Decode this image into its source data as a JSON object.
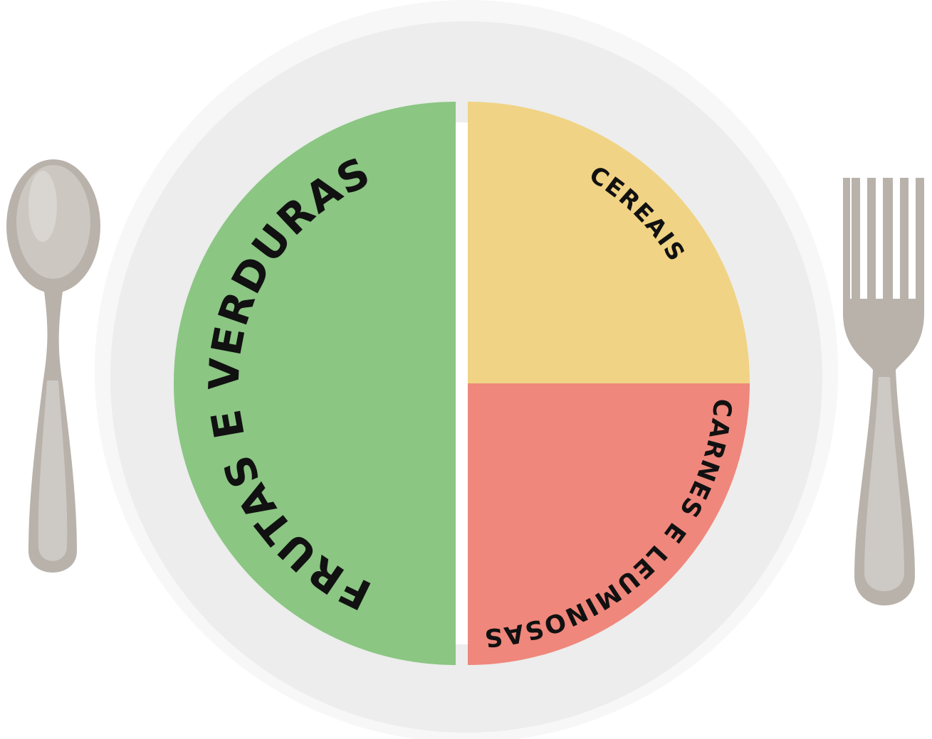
{
  "sections": [
    {
      "label": "FRUTAS E VERDURAS",
      "color": "#8bc683"
    },
    {
      "label": "CEREAIS",
      "color": "#f0d384"
    },
    {
      "label": "CARNES E LEUMINOSAS",
      "color": "#ef877c"
    }
  ]
}
